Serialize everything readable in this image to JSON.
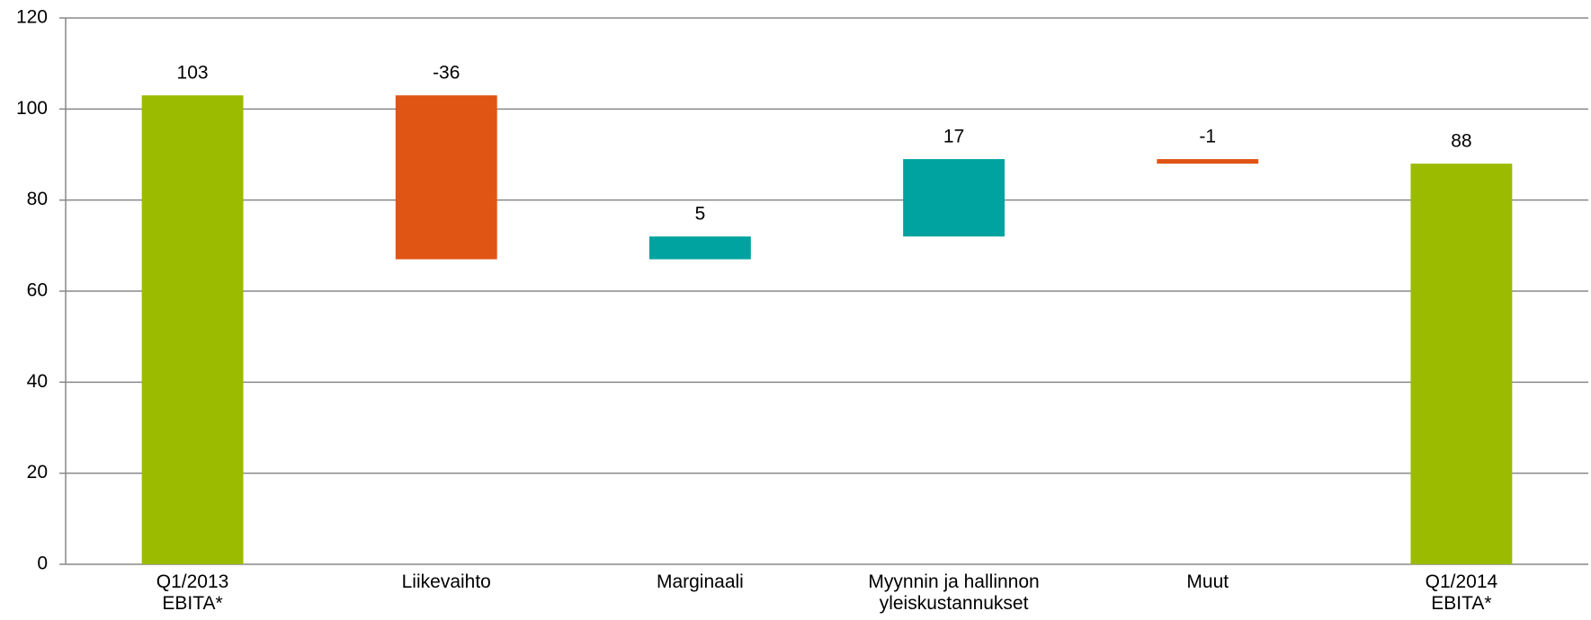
{
  "chart_data": {
    "type": "waterfall",
    "categories": [
      "Q1/2013\nEBITA*",
      "Liikevaihto",
      "Marginaali",
      "Myynnin ja hallinnon\nyleiskustannukset",
      "Muut",
      "Q1/2014\nEBITA*"
    ],
    "values": [
      103,
      -36,
      5,
      17,
      -1,
      88
    ],
    "measure": [
      "absolute",
      "relative",
      "relative",
      "relative",
      "relative",
      "absolute"
    ],
    "colors": {
      "absolute": "#9bbb00",
      "increase": "#00a3a0",
      "decrease": "#e05414"
    },
    "ylim": [
      0,
      120
    ],
    "yticks": [
      0,
      20,
      40,
      60,
      80,
      100,
      120
    ],
    "grid": true
  }
}
